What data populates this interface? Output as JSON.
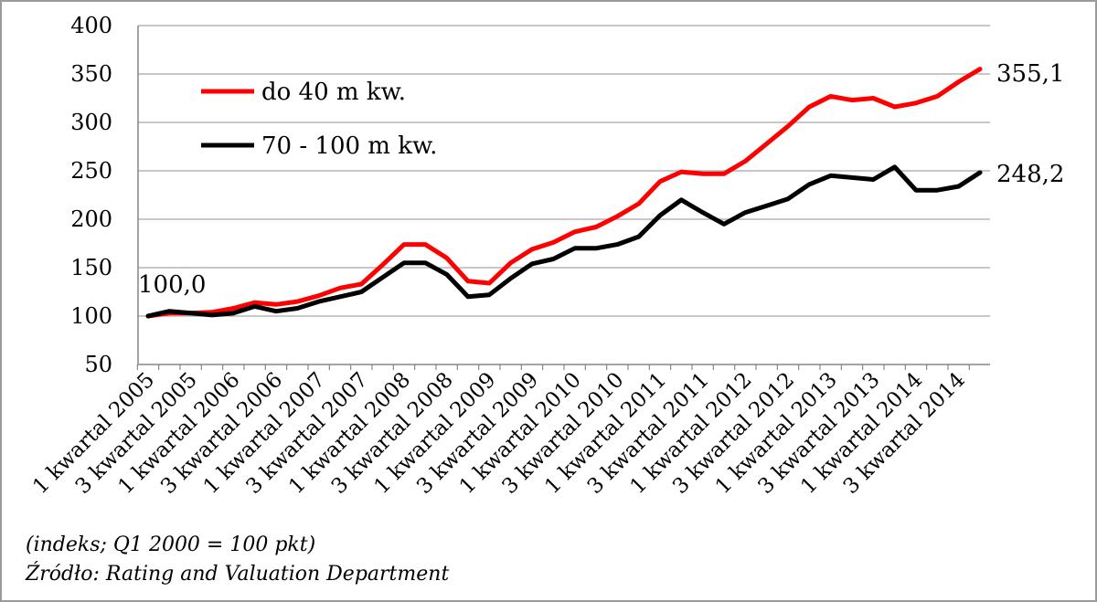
{
  "chart_data": {
    "type": "line",
    "ylim": [
      50,
      400
    ],
    "yticks": [
      50,
      100,
      150,
      200,
      250,
      300,
      350,
      400
    ],
    "grid": true,
    "legend_position": "top-left",
    "categories": [
      "1 kwartal 2005",
      "2 kwartal 2005",
      "3 kwartal 2005",
      "4 kwartal 2005",
      "1 kwartal 2006",
      "2 kwartal 2006",
      "3 kwartal 2006",
      "4 kwartal 2006",
      "1 kwartal 2007",
      "2 kwartal 2007",
      "3 kwartal 2007",
      "4 kwartal 2007",
      "1 kwartal 2008",
      "2 kwartal 2008",
      "3 kwartal 2008",
      "4 kwartal 2008",
      "1 kwartal 2009",
      "2 kwartal 2009",
      "3 kwartal 2009",
      "4 kwartal 2009",
      "1 kwartal 2010",
      "2 kwartal 2010",
      "3 kwartal 2010",
      "4 kwartal 2010",
      "1 kwartal 2011",
      "2 kwartal 2011",
      "3 kwartal 2011",
      "4 kwartal 2011",
      "1 kwartal 2012",
      "2 kwartal 2012",
      "3 kwartal 2012",
      "4 kwartal 2012",
      "1 kwartal 2013",
      "2 kwartal 2013",
      "3 kwartal 2013",
      "4 kwartal 2013",
      "1 kwartal 2014",
      "2 kwartal 2014",
      "3 kwartal 2014",
      "4 kwartal 2014"
    ],
    "visible_tick_labels": [
      "1 kwartal 2005",
      "3 kwartal 2005",
      "1 kwartal 2006",
      "3 kwartal 2006",
      "1 kwartal 2007",
      "3 kwartal 2007",
      "1 kwartal 2008",
      "3 kwartal 2008",
      "1 kwartal 2009",
      "3 kwartal 2009",
      "1 kwartal 2010",
      "3 kwartal 2010",
      "1 kwartal 2011",
      "3 kwartal 2011",
      "1 kwartal 2012",
      "3 kwartal 2012",
      "1 kwartal 2013",
      "3 kwartal 2013",
      "1 kwartal 2014",
      "3 kwartal 2014"
    ],
    "series": [
      {
        "name": "do 40 m kw.",
        "color": "#ff0000",
        "values": [
          100,
          103,
          103,
          104,
          108,
          114,
          112,
          115,
          121,
          129,
          133,
          153,
          174,
          174,
          160,
          136,
          134,
          155,
          169,
          176,
          187,
          192,
          203,
          216,
          239,
          249,
          247,
          247,
          260,
          278,
          296,
          316,
          327,
          323,
          325,
          316,
          320,
          327,
          342,
          355.1
        ]
      },
      {
        "name": "70 - 100 m kw.",
        "color": "#000000",
        "values": [
          100,
          105,
          103,
          101,
          103,
          110,
          105,
          108,
          115,
          120,
          125,
          140,
          155,
          155,
          143,
          120,
          122,
          139,
          154,
          159,
          170,
          170,
          174,
          182,
          204,
          220,
          207,
          195,
          207,
          214,
          221,
          236,
          245,
          243,
          241,
          254,
          230,
          230,
          234,
          248.2
        ]
      }
    ],
    "annotations": {
      "start_label": "100,0",
      "end_label_red": "355,1",
      "end_label_black": "248,2"
    }
  },
  "footnotes": {
    "index_note": "(indeks; Q1 2000 = 100 pkt)",
    "source": "Źródło: Rating and Valuation Department"
  }
}
